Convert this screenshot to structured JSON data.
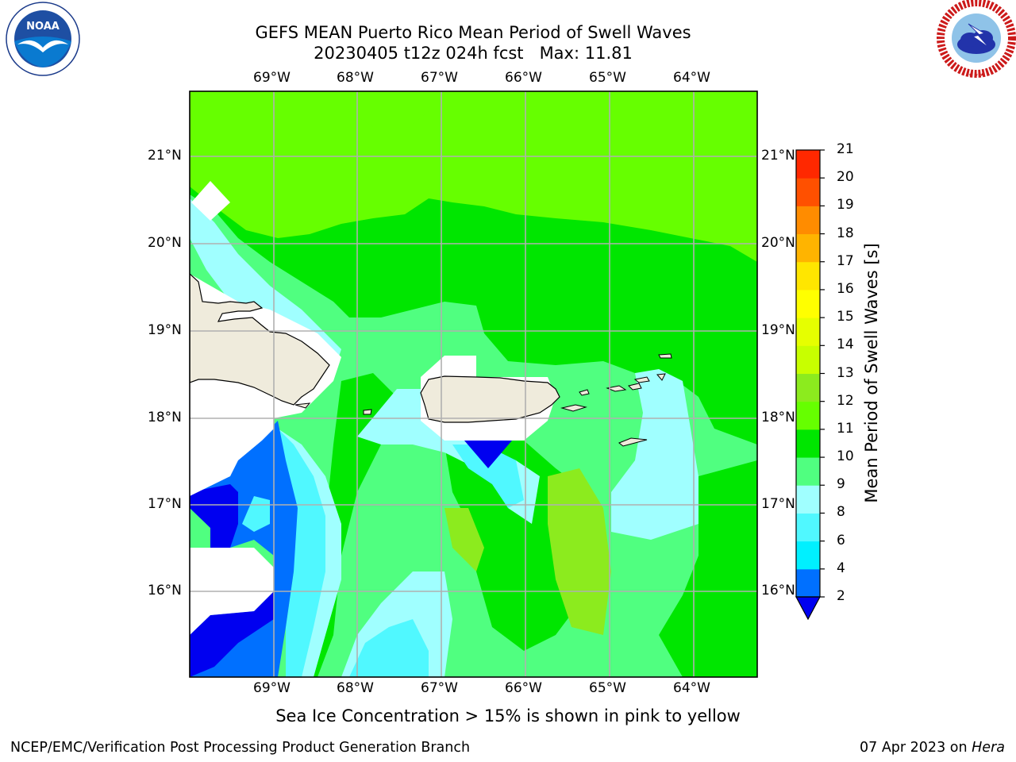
{
  "title": {
    "line1": "GEFS MEAN Puerto Rico Mean Period of Swell Waves",
    "line2": "20230405 t12z 024h fcst   Max: 11.81"
  },
  "map": {
    "lon_labels_top": [
      "69°W",
      "68°W",
      "67°W",
      "66°W",
      "65°W",
      "64°W"
    ],
    "lon_labels_bottom": [
      "69°W",
      "68°W",
      "67°W",
      "66°W",
      "65°W",
      "64°W"
    ],
    "lat_labels_left": [
      "21°N",
      "20°N",
      "19°N",
      "18°N",
      "17°N",
      "16°N"
    ],
    "lat_labels_right": [
      "21°N",
      "20°N",
      "19°N",
      "18°N",
      "17°N",
      "16°N"
    ],
    "land_color": "#efebdc",
    "grid_color": "#b0b0b0"
  },
  "colorbar": {
    "label": "Mean Period of Swell Waves [s]",
    "ticks": [
      "21",
      "20",
      "19",
      "18",
      "17",
      "16",
      "15",
      "14",
      "13",
      "12",
      "11",
      "10",
      "9",
      "8",
      "6",
      "4",
      "2"
    ],
    "colors": [
      "#0000f0",
      "#0070ff",
      "#00f0ff",
      "#50f8ff",
      "#a0ffff",
      "#50ff80",
      "#00e600",
      "#66ff00",
      "#8ceb1e",
      "#c8ff00",
      "#e6ff00",
      "#ffff00",
      "#ffe600",
      "#ffb400",
      "#ff8c00",
      "#ff5000",
      "#ff2800",
      "#ff0000"
    ]
  },
  "caption": "Sea Ice Concentration > 15% is shown in pink to yellow",
  "footer": {
    "left": "NCEP/EMC/Verification Post Processing Product Generation Branch",
    "right_date": "07 Apr 2023 on ",
    "right_host": "Hera"
  },
  "logos": {
    "left": "NOAA",
    "right": "NATIONAL WEATHER SERVICE"
  }
}
